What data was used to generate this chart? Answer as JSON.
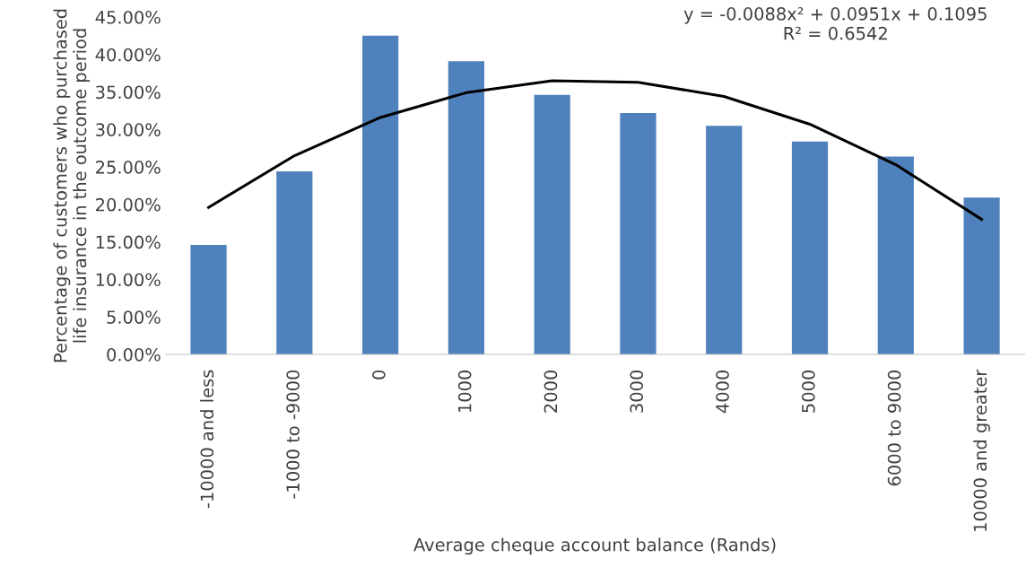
{
  "chart_data": {
    "type": "bar",
    "xlabel": "Average cheque account balance (Rands)",
    "ylabel": "Percentage of customers who purchased\nlife insurance in the outcome period",
    "categories": [
      "-10000 and less",
      "-1000 to -9000",
      "0",
      "1000",
      "2000",
      "3000",
      "4000",
      "5000",
      "6000 to 9000",
      "10000 and greater"
    ],
    "series": [
      {
        "color": "#4f81bd",
        "values": [
          14.6,
          24.4,
          42.5,
          39.1,
          34.6,
          32.2,
          30.5,
          28.4,
          26.4,
          20.9
        ]
      },
      {
        "type": "line",
        "color": "#000000",
        "values": [
          19.6,
          26.5,
          31.6,
          34.9,
          36.5,
          36.3,
          34.4,
          30.7,
          25.3,
          18.0
        ]
      }
    ],
    "ylim": [
      0,
      45
    ],
    "yticks": [
      {
        "value": 0,
        "label": "0.00%"
      },
      {
        "value": 5,
        "label": "5.00%"
      },
      {
        "value": 10,
        "label": "10.00%"
      },
      {
        "value": 15,
        "label": "15.00%"
      },
      {
        "value": 20,
        "label": "20.00%"
      },
      {
        "value": 25,
        "label": "25.00%"
      },
      {
        "value": 30,
        "label": "30.00%"
      },
      {
        "value": 35,
        "label": "35.00%"
      },
      {
        "value": 40,
        "label": "40.00%"
      },
      {
        "value": 45,
        "label": "45.00%"
      }
    ],
    "annotations": [
      "y = -0.0088x² + 0.0951x + 0.1095\nR² = 0.6542"
    ],
    "grid": false,
    "legend": false
  }
}
